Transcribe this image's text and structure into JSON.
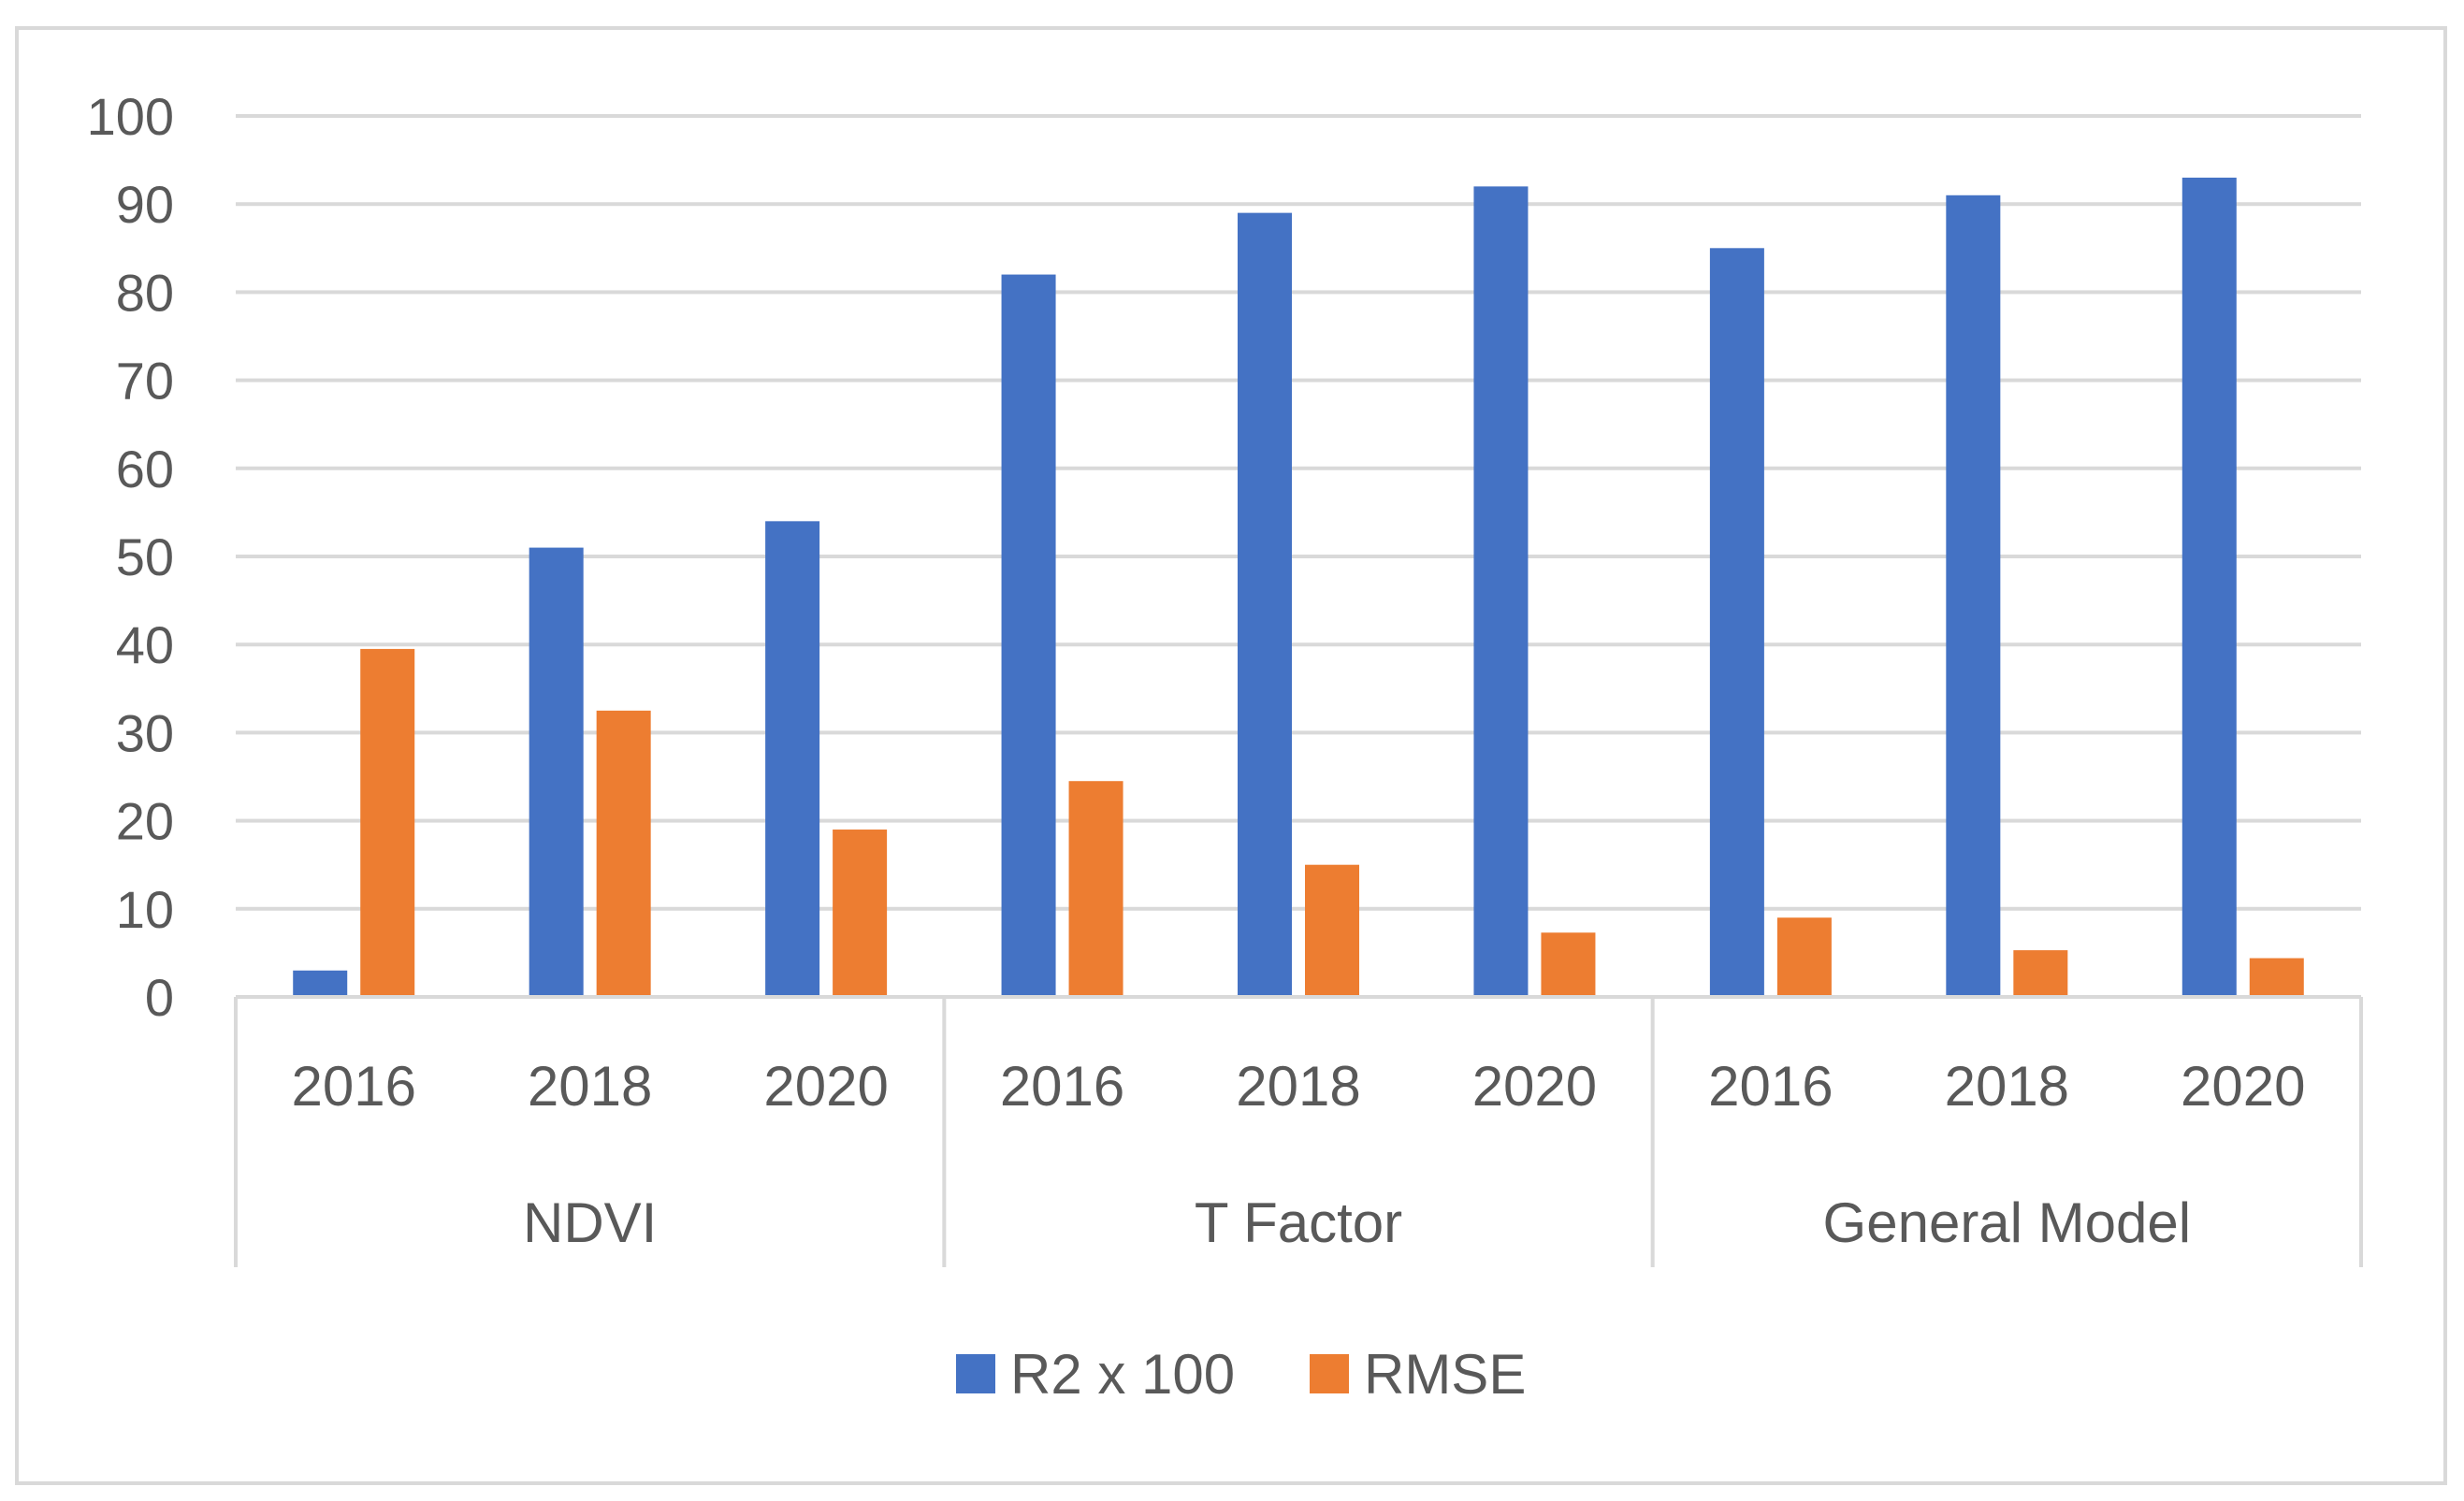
{
  "chart_data": {
    "type": "bar",
    "groups": [
      {
        "label": "NDVI",
        "categories": [
          "2016",
          "2018",
          "2020"
        ]
      },
      {
        "label": "T Factor",
        "categories": [
          "2016",
          "2018",
          "2020"
        ]
      },
      {
        "label": "General Model",
        "categories": [
          "2016",
          "2018",
          "2020"
        ]
      }
    ],
    "series": [
      {
        "name": "R2 x 100",
        "color": "#4472c4",
        "values": [
          3,
          51,
          54,
          82,
          89,
          92,
          85,
          91,
          93
        ]
      },
      {
        "name": "RMSE",
        "color": "#ed7d31",
        "values": [
          39.5,
          32.5,
          19,
          24.5,
          15,
          7.3,
          9,
          5.3,
          4.4
        ]
      }
    ],
    "ylim": [
      0,
      100
    ],
    "yticks": [
      0,
      10,
      20,
      30,
      40,
      50,
      60,
      70,
      80,
      90,
      100
    ],
    "grid": true,
    "legend": "bottom",
    "gridColor": "#d9d9d9",
    "textColor": "#595959"
  }
}
